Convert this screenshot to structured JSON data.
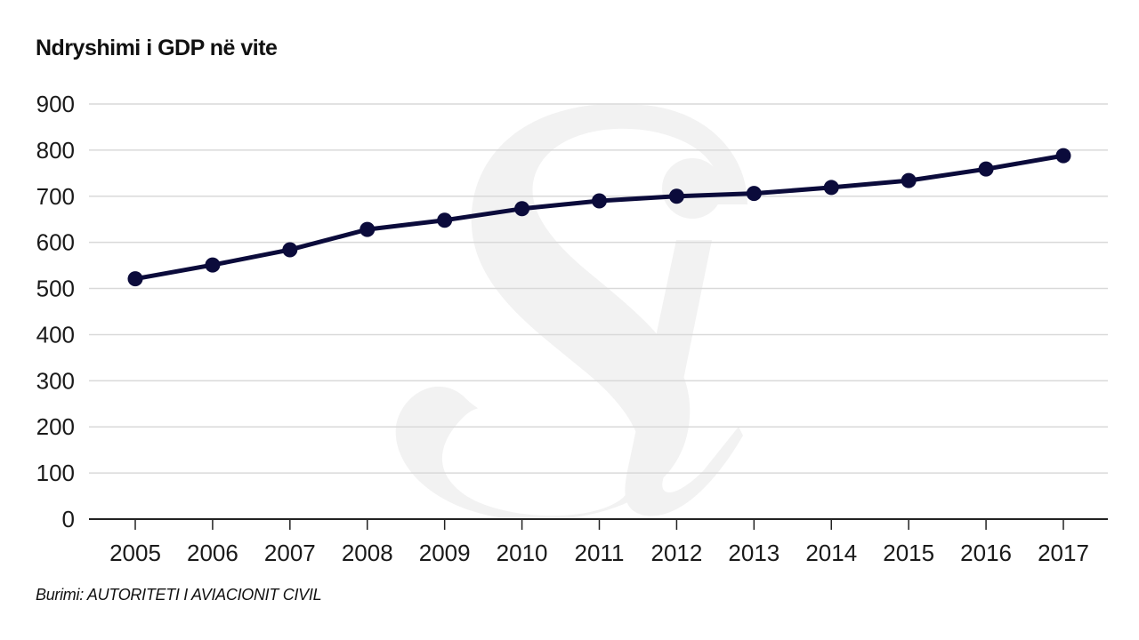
{
  "chart_data": {
    "type": "line",
    "title": "Ndryshimi i GDP në vite",
    "source": "Burimi: AUTORITETI I AVIACIONIT CIVIL",
    "x": [
      "2005",
      "2006",
      "2007",
      "2008",
      "2009",
      "2010",
      "2011",
      "2012",
      "2013",
      "2014",
      "2015",
      "2016",
      "2017"
    ],
    "series": [
      {
        "values": [
          521,
          551,
          584,
          628,
          648,
          673,
          690,
          700,
          706,
          719,
          734,
          759,
          788
        ]
      }
    ],
    "y_ticks": [
      0,
      100,
      200,
      300,
      400,
      500,
      600,
      700,
      800,
      900
    ],
    "ylim": [
      0,
      900
    ],
    "grid": true,
    "legend": "none",
    "colors": {
      "line": "#0b0b3b",
      "grid": "#d9d9d9",
      "axis": "#222222",
      "watermark": "#f1f1f1"
    }
  },
  "watermark": {
    "name": "si-logo-watermark"
  }
}
